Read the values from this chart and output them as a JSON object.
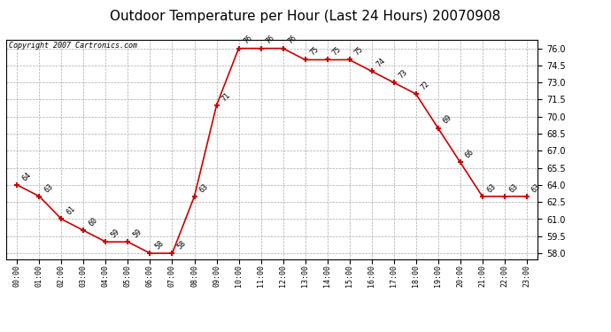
{
  "title": "Outdoor Temperature per Hour (Last 24 Hours) 20070908",
  "copyright": "Copyright 2007 Cartronics.com",
  "hours": [
    "00:00",
    "01:00",
    "02:00",
    "03:00",
    "04:00",
    "05:00",
    "06:00",
    "07:00",
    "08:00",
    "09:00",
    "10:00",
    "11:00",
    "12:00",
    "13:00",
    "14:00",
    "15:00",
    "16:00",
    "17:00",
    "18:00",
    "19:00",
    "20:00",
    "21:00",
    "22:00",
    "23:00"
  ],
  "temperatures": [
    64,
    63,
    61,
    60,
    59,
    59,
    58,
    58,
    63,
    71,
    76,
    76,
    76,
    75,
    75,
    75,
    74,
    73,
    72,
    69,
    66,
    63,
    63,
    63
  ],
  "line_color": "#cc0000",
  "marker_color": "#cc0000",
  "bg_color": "#ffffff",
  "plot_bg_color": "#ffffff",
  "grid_color": "#aaaaaa",
  "title_fontsize": 11,
  "copyright_fontsize": 6,
  "label_fontsize": 6,
  "ylim": [
    57.5,
    76.75
  ],
  "yticks": [
    58.0,
    59.5,
    61.0,
    62.5,
    64.0,
    65.5,
    67.0,
    68.5,
    70.0,
    71.5,
    73.0,
    74.5,
    76.0
  ]
}
